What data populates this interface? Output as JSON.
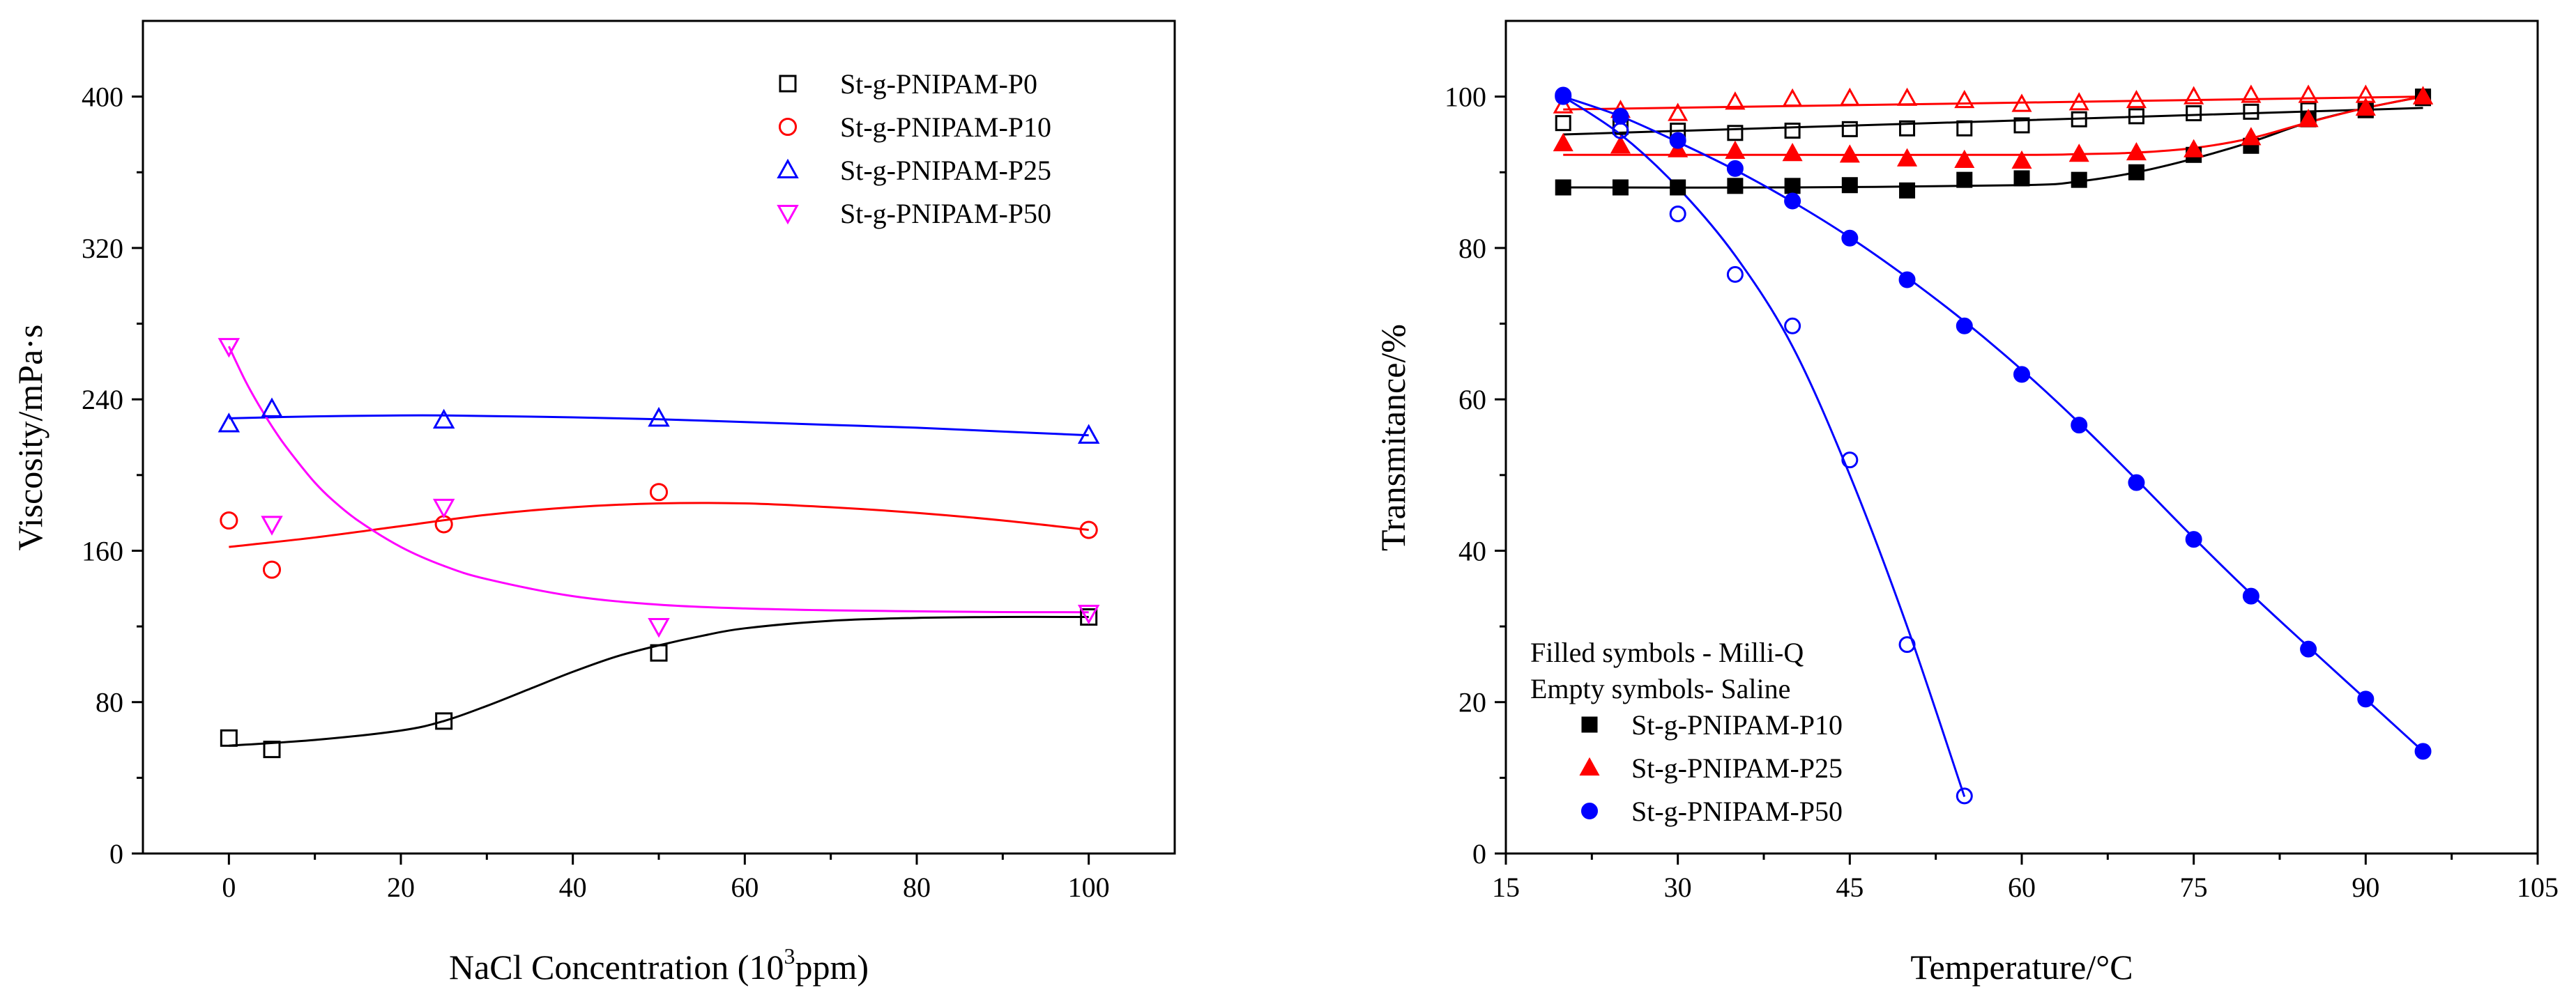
{
  "chart_data": [
    {
      "type": "scatter",
      "xlabel": "NaCl Concentration (10",
      "xlabel_sup": "3",
      "xlabel_tail": "ppm)",
      "ylabel": "Viscosity/mPa·s",
      "xlim": [
        -10,
        110
      ],
      "ylim": [
        0,
        440
      ],
      "xticks": [
        0,
        20,
        40,
        60,
        80,
        100
      ],
      "yticks": [
        0,
        80,
        160,
        240,
        320,
        400
      ],
      "legend_position": "top-right",
      "series": [
        {
          "name": "St-g-PNIPAM-P0",
          "marker": "square-open",
          "color": "#000000",
          "x": [
            0,
            5,
            25,
            50,
            100
          ],
          "y": [
            61,
            55,
            70,
            106,
            125
          ],
          "fit_x": [
            0,
            10,
            20,
            25,
            30,
            35,
            40,
            45,
            50,
            55,
            60,
            70,
            80,
            90,
            100
          ],
          "fit_y": [
            57,
            60,
            65,
            70,
            78,
            87,
            96,
            104,
            110,
            115,
            119,
            123,
            124.5,
            125,
            125
          ]
        },
        {
          "name": "St-g-PNIPAM-P10",
          "marker": "circle-open",
          "color": "#ff0000",
          "x": [
            0,
            5,
            25,
            50,
            100
          ],
          "y": [
            176,
            150,
            174,
            191,
            171
          ],
          "fit_x": [
            0,
            10,
            20,
            30,
            40,
            50,
            60,
            70,
            80,
            90,
            100
          ],
          "fit_y": [
            162,
            167,
            173,
            179,
            183,
            185,
            185,
            183,
            180,
            176,
            171
          ]
        },
        {
          "name": "St-g-PNIPAM-P25",
          "marker": "triangle-up-open",
          "color": "#0000ff",
          "x": [
            0,
            5,
            25,
            50,
            100
          ],
          "y": [
            227,
            235,
            229,
            230,
            221
          ],
          "fit_x": [
            0,
            10,
            20,
            25,
            30,
            40,
            50,
            60,
            70,
            80,
            90,
            100
          ],
          "fit_y": [
            230,
            231,
            231.5,
            231.5,
            231.2,
            230.5,
            229.5,
            228,
            226.5,
            225,
            223,
            221
          ]
        },
        {
          "name": "St-g-PNIPAM-P50",
          "marker": "triangle-down-open",
          "color": "#ff00ff",
          "x": [
            0,
            5,
            25,
            50,
            100
          ],
          "y": [
            268,
            174,
            183,
            120,
            127
          ],
          "fit_x": [
            0,
            2,
            4,
            6,
            8,
            10,
            12,
            15,
            20,
            25,
            30,
            40,
            50,
            60,
            70,
            80,
            90,
            100
          ],
          "fit_y": [
            268,
            249,
            233,
            219,
            207,
            196,
            187,
            176,
            162,
            152,
            145,
            136,
            131.5,
            129.5,
            128.5,
            128,
            127.6,
            127.5
          ]
        }
      ]
    },
    {
      "type": "scatter",
      "xlabel": "Temperature/°C",
      "ylabel": "Transmitance/%",
      "xlim": [
        15,
        105
      ],
      "ylim": [
        0,
        110
      ],
      "xticks": [
        15,
        30,
        45,
        60,
        75,
        90,
        105
      ],
      "yticks": [
        0,
        20,
        40,
        60,
        80,
        100
      ],
      "legend_position": "bottom-left",
      "legend_notes": [
        "Filled symbols - Milli-Q",
        "Empty symbols- Saline"
      ],
      "series": [
        {
          "name": "St-g-PNIPAM-P10",
          "marker": "square",
          "color": "#000000",
          "filled": {
            "x": [
              20,
              25,
              30,
              35,
              40,
              45,
              50,
              55,
              60,
              65,
              70,
              75,
              80,
              85,
              90,
              95
            ],
            "y": [
              88,
              88,
              88,
              88.2,
              88.2,
              88.3,
              87.6,
              89,
              89.2,
              89,
              90,
              92.3,
              93.5,
              97,
              98.3,
              100
            ]
          },
          "empty": {
            "x": [
              20,
              25,
              30,
              35,
              40,
              45,
              50,
              55,
              60,
              65,
              70,
              75,
              80,
              85,
              90,
              95
            ],
            "y": [
              96.5,
              96,
              95.5,
              95.2,
              95.5,
              95.7,
              95.8,
              95.8,
              96.2,
              97,
              97.4,
              97.8,
              98,
              98.2,
              98.2,
              99.8
            ]
          },
          "fit_filled": {
            "x": [
              20,
              40,
              60,
              65,
              70,
              75,
              80,
              85,
              90,
              95
            ],
            "y": [
              88,
              88,
              88.3,
              88.8,
              90,
              91.8,
              94,
              96.6,
              98.5,
              100
            ]
          },
          "fit_empty": {
            "x": [
              20,
              95
            ],
            "y": [
              95,
              98.5
            ]
          }
        },
        {
          "name": "St-g-PNIPAM-P25",
          "marker": "triangle-up",
          "color": "#ff0000",
          "filled": {
            "x": [
              20,
              25,
              30,
              35,
              40,
              45,
              50,
              55,
              60,
              65,
              70,
              75,
              80,
              85,
              90,
              95
            ],
            "y": [
              93.8,
              93.5,
              93,
              92.8,
              92.5,
              92.3,
              91.8,
              91.6,
              91.5,
              92.4,
              92.6,
              93,
              94.6,
              97,
              98.5,
              100
            ]
          },
          "empty": {
            "x": [
              20,
              25,
              30,
              35,
              40,
              45,
              50,
              55,
              60,
              65,
              70,
              75,
              80,
              85,
              90,
              95
            ],
            "y": [
              98.8,
              98.2,
              97.8,
              99.3,
              99.7,
              99.8,
              99.8,
              99.5,
              99,
              99.2,
              99.5,
              100,
              100.2,
              100.2,
              100.2,
              100
            ]
          },
          "fit_filled": {
            "x": [
              20,
              40,
              60,
              65,
              70,
              75,
              80,
              85,
              90,
              95
            ],
            "y": [
              92.3,
              92.3,
              92.3,
              92.4,
              92.6,
              93.2,
              94.5,
              96.6,
              98.5,
              100
            ]
          },
          "fit_empty": {
            "x": [
              20,
              95
            ],
            "y": [
              98.3,
              100
            ]
          }
        },
        {
          "name": "St-g-PNIPAM-P50",
          "marker": "circle",
          "color": "#0000ff",
          "filled": {
            "x": [
              20,
              25,
              30,
              35,
              40,
              45,
              50,
              55,
              60,
              65,
              70,
              75,
              80,
              85,
              90,
              95
            ],
            "y": [
              100,
              97.4,
              94.2,
              90.5,
              86.2,
              81.3,
              75.8,
              69.7,
              63.3,
              56.6,
              49,
              41.5,
              34,
              27,
              20.4,
              13.5
            ]
          },
          "empty": {
            "x": [
              20,
              25,
              30,
              35,
              40,
              45,
              50,
              55
            ],
            "y": [
              100.2,
              95.5,
              84.5,
              76.5,
              69.7,
              52,
              27.6,
              7.6
            ]
          },
          "fit_filled": {
            "x": [
              20,
              25,
              30,
              35,
              40,
              45,
              50,
              55,
              60,
              65,
              70,
              75,
              80,
              85,
              90,
              95
            ],
            "y": [
              100,
              97.4,
              94,
              90.3,
              86.1,
              81.4,
              76.1,
              70.3,
              63.9,
              56.9,
              49.4,
              41.7,
              34.3,
              27.3,
              20.4,
              13.5
            ]
          },
          "fit_empty": {
            "x": [
              20,
              25,
              30,
              35,
              40,
              45,
              50,
              55
            ],
            "y": [
              100,
              95,
              88,
              79,
              67,
              50,
              30,
              7.5
            ]
          }
        }
      ]
    }
  ]
}
